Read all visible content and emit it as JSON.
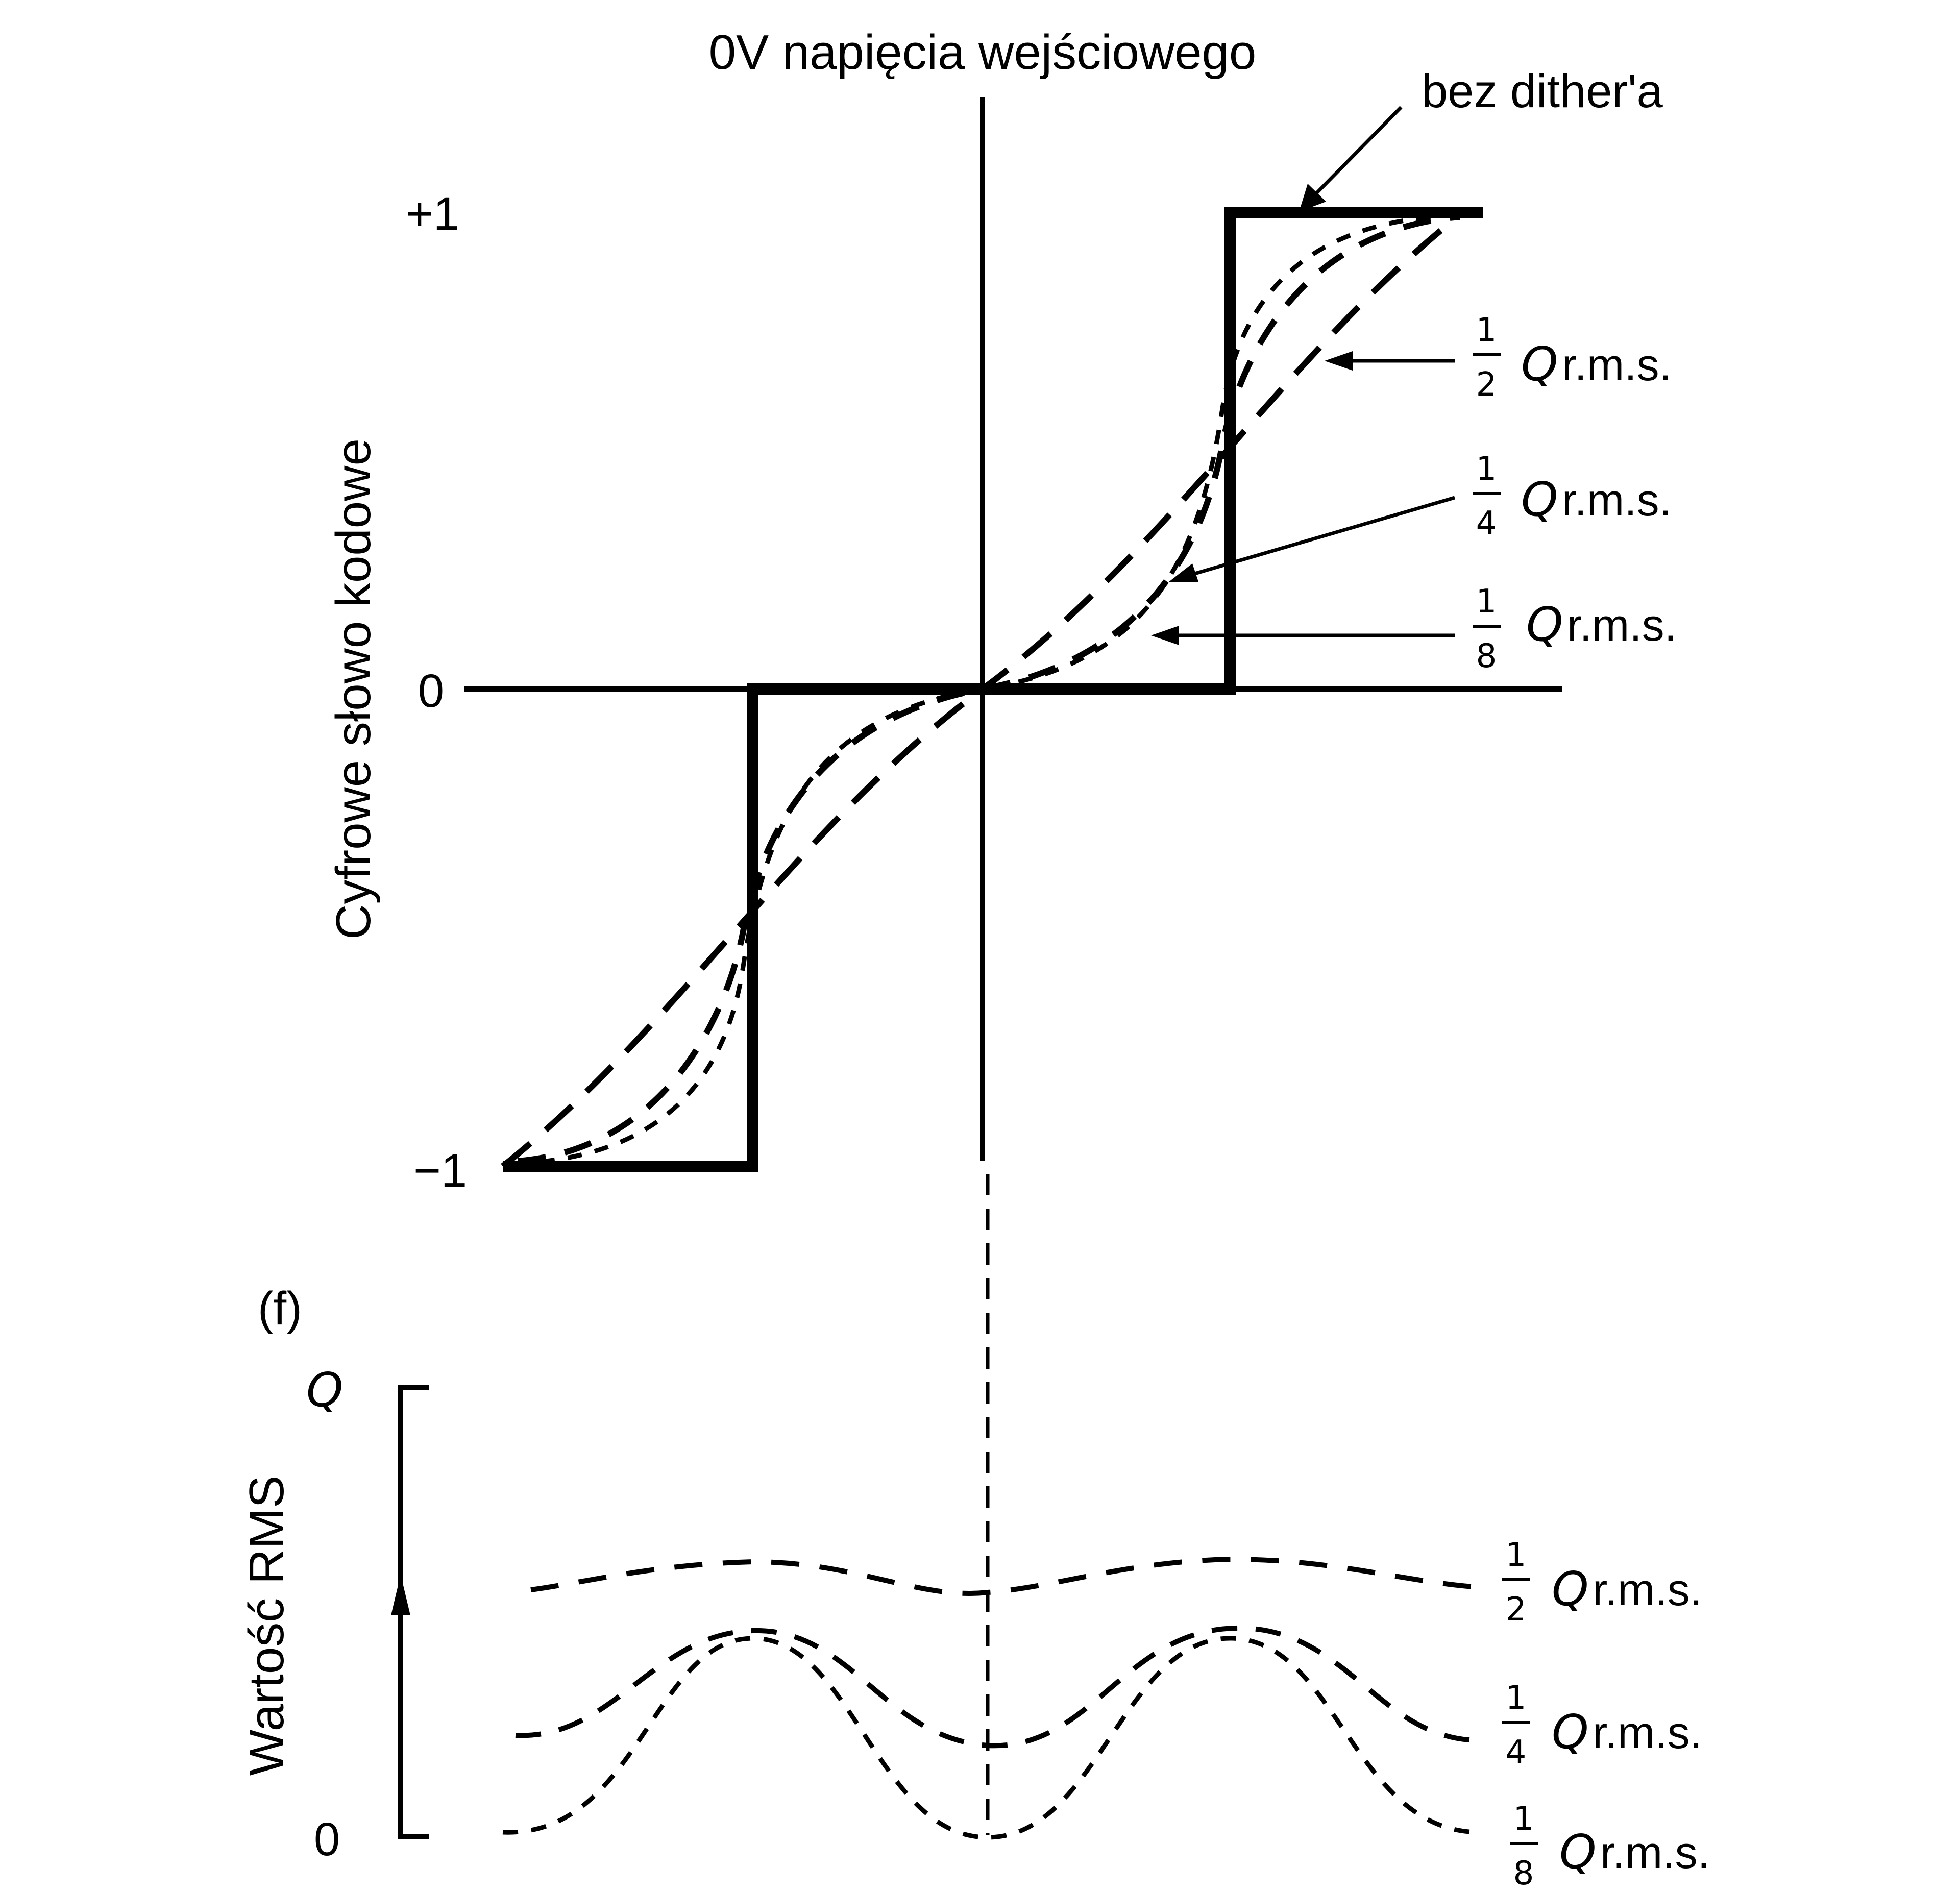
{
  "top": {
    "header": "0V napięcia wejściowego",
    "y_axis_title": "Cyfrowe słowo kodowe",
    "y_ticks": [
      "+1",
      "0",
      "−1"
    ],
    "annotations": {
      "no_dither": "bez dither'a",
      "half": {
        "num": "1",
        "den": "2",
        "q": "Q",
        "unit": "r.m.s."
      },
      "quarter": {
        "num": "1",
        "den": "4",
        "q": "Q",
        "unit": "r.m.s."
      },
      "eighth": {
        "num": "1",
        "den": "8",
        "q": "Q",
        "unit": "r.m.s."
      }
    }
  },
  "bottom": {
    "panel_label": "(f)",
    "y_axis_title": "Wartość RMS",
    "y_ticks": [
      "Q",
      "0"
    ],
    "annotations": {
      "half": {
        "num": "1",
        "den": "2",
        "q": "Q",
        "unit": "r.m.s."
      },
      "quarter": {
        "num": "1",
        "den": "4",
        "q": "Q",
        "unit": "r.m.s."
      },
      "eighth": {
        "num": "1",
        "den": "8",
        "q": "Q",
        "unit": "r.m.s."
      }
    }
  }
}
